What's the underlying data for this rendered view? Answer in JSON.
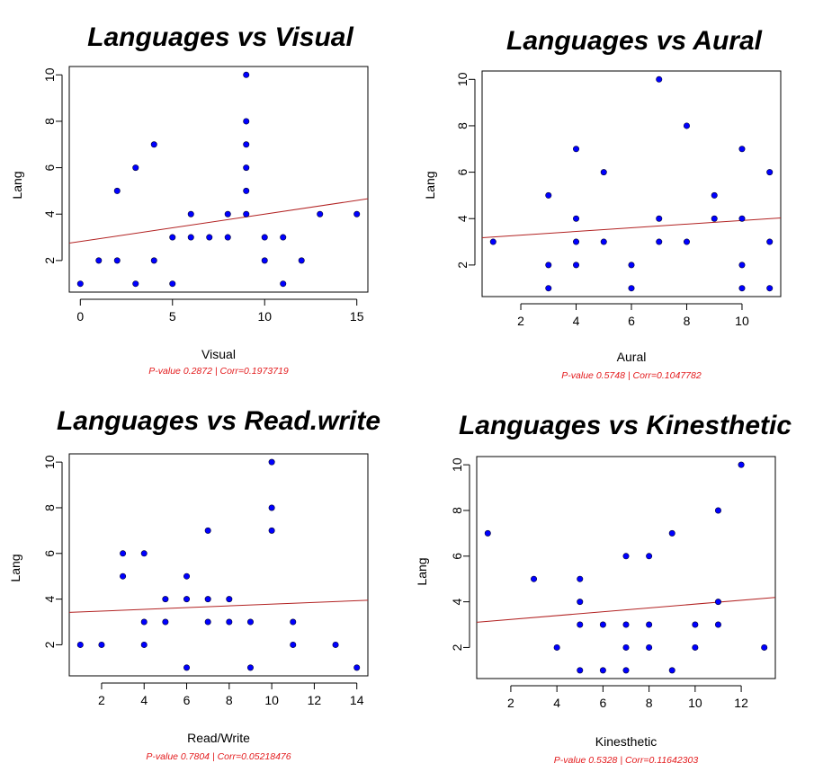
{
  "colors": {
    "point": "#0000ff",
    "point_stroke": "#000033",
    "fit_line": "#b22222",
    "note": "#e31a1c",
    "axis": "#000000"
  },
  "chart_data": [
    {
      "type": "scatter",
      "title": "Languages vs Visual",
      "xlabel": "Visual",
      "ylabel": "Lang",
      "note": "P-value 0.2872 | Corr=0.1973719",
      "xlim": [
        -0.6,
        15.6
      ],
      "ylim": [
        0.64,
        10.36
      ],
      "xticks": [
        0,
        5,
        10,
        15
      ],
      "yticks": [
        2,
        4,
        6,
        8,
        10
      ],
      "fit_line": {
        "intercept": 2.82,
        "slope": 0.118
      },
      "points": [
        [
          0,
          1
        ],
        [
          1,
          2
        ],
        [
          2,
          2
        ],
        [
          2,
          5
        ],
        [
          3,
          1
        ],
        [
          3,
          6
        ],
        [
          4,
          2
        ],
        [
          4,
          7
        ],
        [
          5,
          1
        ],
        [
          5,
          3
        ],
        [
          6,
          3
        ],
        [
          6,
          4
        ],
        [
          7,
          3
        ],
        [
          8,
          3
        ],
        [
          8,
          4
        ],
        [
          9,
          4
        ],
        [
          9,
          5
        ],
        [
          9,
          6
        ],
        [
          9,
          7
        ],
        [
          9,
          8
        ],
        [
          9,
          10
        ],
        [
          10,
          2
        ],
        [
          10,
          3
        ],
        [
          11,
          1
        ],
        [
          11,
          3
        ],
        [
          12,
          2
        ],
        [
          13,
          4
        ],
        [
          15,
          4
        ]
      ]
    },
    {
      "type": "scatter",
      "title": "Languages vs Aural",
      "xlabel": "Aural",
      "ylabel": "Lang",
      "note": "P-value 0.5748 | Corr=0.1047782",
      "xlim": [
        0.6,
        11.4
      ],
      "ylim": [
        0.64,
        10.36
      ],
      "xticks": [
        2,
        4,
        6,
        8,
        10
      ],
      "yticks": [
        2,
        4,
        6,
        8,
        10
      ],
      "fit_line": {
        "intercept": 3.13,
        "slope": 0.079
      },
      "points": [
        [
          1,
          3
        ],
        [
          3,
          1
        ],
        [
          3,
          2
        ],
        [
          3,
          5
        ],
        [
          4,
          2
        ],
        [
          4,
          3
        ],
        [
          4,
          4
        ],
        [
          4,
          7
        ],
        [
          5,
          3
        ],
        [
          5,
          6
        ],
        [
          6,
          1
        ],
        [
          6,
          2
        ],
        [
          7,
          3
        ],
        [
          7,
          4
        ],
        [
          7,
          10
        ],
        [
          8,
          3
        ],
        [
          8,
          8
        ],
        [
          9,
          4
        ],
        [
          9,
          5
        ],
        [
          10,
          1
        ],
        [
          10,
          2
        ],
        [
          10,
          4
        ],
        [
          10,
          7
        ],
        [
          11,
          1
        ],
        [
          11,
          3
        ],
        [
          11,
          6
        ]
      ]
    },
    {
      "type": "scatter",
      "title": "Languages vs Read.write",
      "xlabel": "Read/Write",
      "ylabel": "Lang",
      "note": "P-value 0.7804 | Corr=0.05218476",
      "xlim": [
        0.48,
        14.52
      ],
      "ylim": [
        0.64,
        10.36
      ],
      "xticks": [
        2,
        4,
        6,
        8,
        10,
        12,
        14
      ],
      "yticks": [
        2,
        4,
        6,
        8,
        10
      ],
      "fit_line": {
        "intercept": 3.4,
        "slope": 0.038
      },
      "points": [
        [
          1,
          2
        ],
        [
          2,
          2
        ],
        [
          3,
          5
        ],
        [
          3,
          6
        ],
        [
          4,
          2
        ],
        [
          4,
          3
        ],
        [
          4,
          6
        ],
        [
          5,
          3
        ],
        [
          5,
          4
        ],
        [
          6,
          1
        ],
        [
          6,
          4
        ],
        [
          6,
          5
        ],
        [
          7,
          3
        ],
        [
          7,
          4
        ],
        [
          7,
          7
        ],
        [
          8,
          3
        ],
        [
          8,
          4
        ],
        [
          9,
          1
        ],
        [
          9,
          3
        ],
        [
          10,
          7
        ],
        [
          10,
          8
        ],
        [
          10,
          10
        ],
        [
          11,
          2
        ],
        [
          11,
          3
        ],
        [
          13,
          2
        ],
        [
          14,
          1
        ]
      ]
    },
    {
      "type": "scatter",
      "title": "Languages vs Kinesthetic",
      "xlabel": "Kinesthetic",
      "ylabel": "Lang",
      "note": "P-value 0.5328 | Corr=0.11642303",
      "xlim": [
        0.52,
        13.48
      ],
      "ylim": [
        0.64,
        10.36
      ],
      "xticks": [
        2,
        4,
        6,
        8,
        10,
        12
      ],
      "yticks": [
        2,
        4,
        6,
        8,
        10
      ],
      "fit_line": {
        "intercept": 3.06,
        "slope": 0.084
      },
      "points": [
        [
          1,
          7
        ],
        [
          3,
          5
        ],
        [
          4,
          2
        ],
        [
          5,
          1
        ],
        [
          5,
          3
        ],
        [
          5,
          4
        ],
        [
          5,
          5
        ],
        [
          6,
          1
        ],
        [
          6,
          3
        ],
        [
          7,
          1
        ],
        [
          7,
          2
        ],
        [
          7,
          3
        ],
        [
          7,
          6
        ],
        [
          8,
          2
        ],
        [
          8,
          3
        ],
        [
          8,
          6
        ],
        [
          9,
          1
        ],
        [
          9,
          7
        ],
        [
          10,
          2
        ],
        [
          10,
          3
        ],
        [
          11,
          3
        ],
        [
          11,
          4
        ],
        [
          11,
          8
        ],
        [
          12,
          10
        ],
        [
          13,
          2
        ]
      ]
    }
  ]
}
